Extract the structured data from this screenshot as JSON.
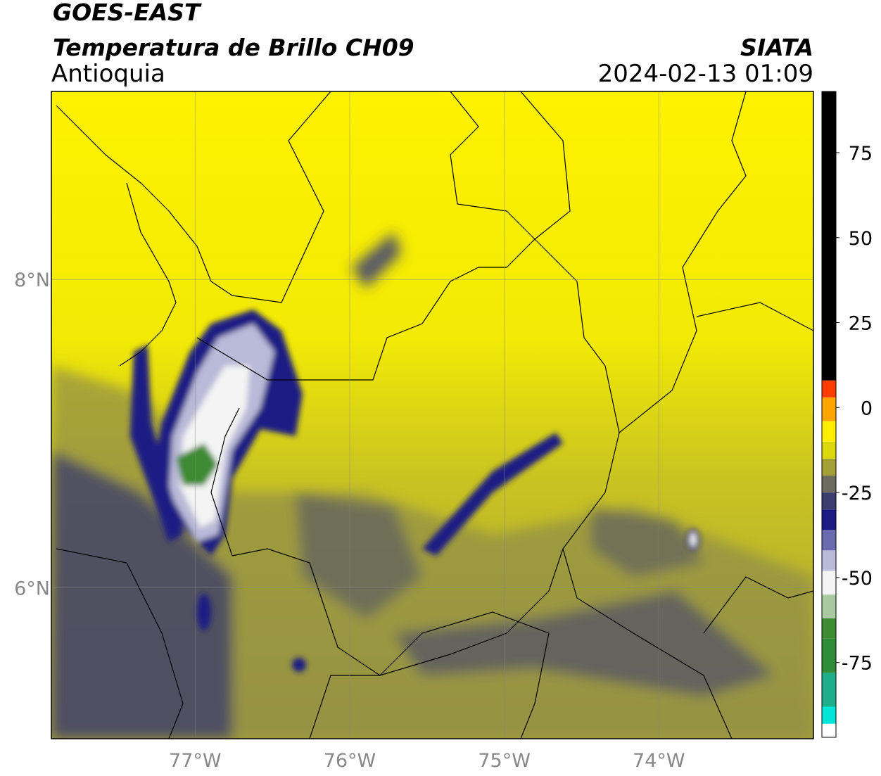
{
  "header": {
    "satellite": "GOES-EAST",
    "product": "Temperatura de Brillo CH09",
    "region": "Antioquia",
    "source": "SIATA",
    "datetime": "2024-02-13 01:09"
  },
  "map": {
    "lon_range": [
      -77.93,
      -73.0
    ],
    "lat_range": [
      5.02,
      9.22
    ],
    "lon_ticks": [
      {
        "value": -77,
        "label": "77°W"
      },
      {
        "value": -76,
        "label": "76°W"
      },
      {
        "value": -75,
        "label": "75°W"
      },
      {
        "value": -74,
        "label": "74°W"
      }
    ],
    "lat_ticks": [
      {
        "value": 8,
        "label": "8°N"
      },
      {
        "value": 6,
        "label": "6°N"
      }
    ]
  },
  "colorbar": {
    "range": [
      -97,
      93
    ],
    "ticks": [
      75,
      50,
      25,
      0,
      -25,
      -50,
      -75
    ],
    "stops": [
      {
        "value": -97,
        "color": "#ffffff"
      },
      {
        "value": -93,
        "color": "#00e5d8"
      },
      {
        "value": -88,
        "color": "#1fae8a"
      },
      {
        "value": -78,
        "color": "#2f8d3a"
      },
      {
        "value": -68,
        "color": "#3d8a32"
      },
      {
        "value": -62,
        "color": "#a9c9a0"
      },
      {
        "value": -55,
        "color": "#f4f4f4"
      },
      {
        "value": -48,
        "color": "#b9b9d8"
      },
      {
        "value": -42,
        "color": "#6a6aae"
      },
      {
        "value": -36,
        "color": "#1b1b84"
      },
      {
        "value": -30,
        "color": "#3a3d6e"
      },
      {
        "value": -25,
        "color": "#6d6b60"
      },
      {
        "value": -20,
        "color": "#a4a035"
      },
      {
        "value": -15,
        "color": "#dcd80c"
      },
      {
        "value": -10,
        "color": "#ffee00"
      },
      {
        "value": -4,
        "color": "#ffa500"
      },
      {
        "value": 3,
        "color": "#ff3c00"
      },
      {
        "value": 8,
        "color": "#000000"
      },
      {
        "value": 93,
        "color": "#000000"
      }
    ]
  }
}
